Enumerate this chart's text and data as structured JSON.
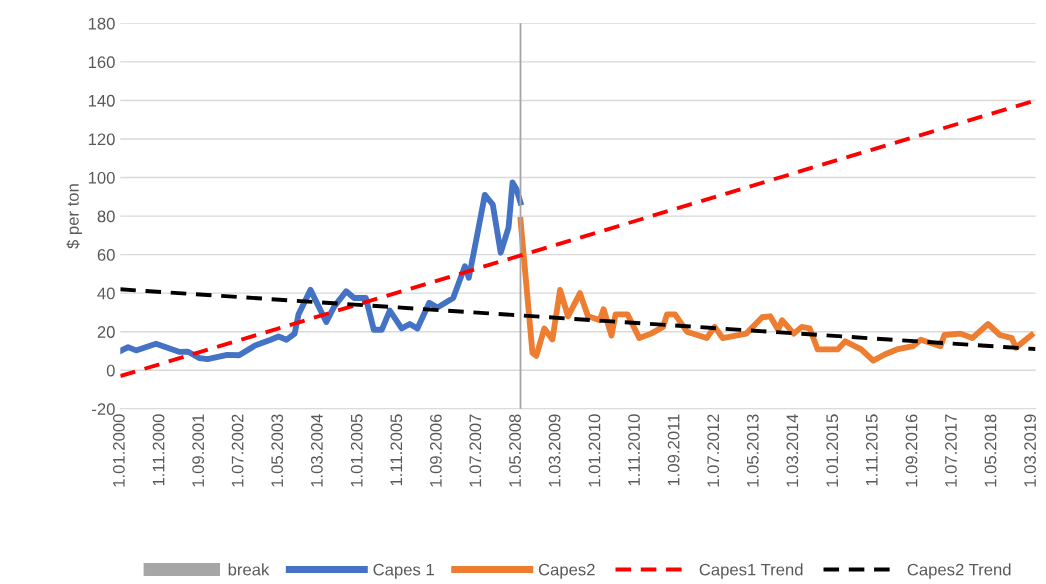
{
  "chart_data": {
    "type": "line",
    "ylabel": "$ per ton",
    "ylim": [
      -20,
      180
    ],
    "yticks": [
      -20,
      0,
      20,
      40,
      60,
      80,
      100,
      120,
      140,
      160,
      180
    ],
    "xlim": [
      "2000-01",
      "2019-04"
    ],
    "xticks": [
      {
        "value": "2000-01",
        "label": "1.01.2000"
      },
      {
        "value": "2000-11",
        "label": "1.11.2000"
      },
      {
        "value": "2001-09",
        "label": "1.09.2001"
      },
      {
        "value": "2002-07",
        "label": "1.07.2002"
      },
      {
        "value": "2003-05",
        "label": "1.05.2003"
      },
      {
        "value": "2004-03",
        "label": "1.03.2004"
      },
      {
        "value": "2005-01",
        "label": "1.01.2005"
      },
      {
        "value": "2005-11",
        "label": "1.11.2005"
      },
      {
        "value": "2006-09",
        "label": "1.09.2006"
      },
      {
        "value": "2007-07",
        "label": "1.07.2007"
      },
      {
        "value": "2008-05",
        "label": "1.05.2008"
      },
      {
        "value": "2009-03",
        "label": "1.03.2009"
      },
      {
        "value": "2010-01",
        "label": "1.01.2010"
      },
      {
        "value": "2010-11",
        "label": "1.11.2010"
      },
      {
        "value": "2011-09",
        "label": "1.09.2011"
      },
      {
        "value": "2012-07",
        "label": "1.07.2012"
      },
      {
        "value": "2013-05",
        "label": "1.05.2013"
      },
      {
        "value": "2014-03",
        "label": "1.03.2014"
      },
      {
        "value": "2015-01",
        "label": "1.01.2015"
      },
      {
        "value": "2015-11",
        "label": "1.11.2015"
      },
      {
        "value": "2016-09",
        "label": "1.09.2016"
      },
      {
        "value": "2017-07",
        "label": "1.07.2017"
      },
      {
        "value": "2018-05",
        "label": "1.05.2018"
      },
      {
        "value": "2019-03",
        "label": "1.03.2019"
      }
    ],
    "grid": "y",
    "legend": "bottom",
    "ref_lines": [
      {
        "axis": "x",
        "value": "2008-06",
        "label": "break",
        "color": "#a6a6a6"
      }
    ],
    "series": [
      {
        "name": "Capes 1",
        "color": "#4472c4",
        "line_style": "solid",
        "x": [
          "2000-01",
          "2000-03",
          "2000-05",
          "2000-10",
          "2001-04",
          "2001-06",
          "2001-09",
          "2001-11",
          "2002-04",
          "2002-07",
          "2002-11",
          "2003-03",
          "2003-05",
          "2003-07",
          "2003-09",
          "2003-10",
          "2004-01",
          "2004-05",
          "2004-07",
          "2004-10",
          "2004-12",
          "2005-03",
          "2005-05",
          "2005-07",
          "2005-09",
          "2005-12",
          "2006-02",
          "2006-04",
          "2006-07",
          "2006-09",
          "2007-01",
          "2007-04",
          "2007-05",
          "2007-07",
          "2007-09",
          "2007-11",
          "2008-01",
          "2008-03",
          "2008-04",
          "2008-05",
          "2008-06"
        ],
        "values": [
          10,
          12,
          10.3,
          13.8,
          9.5,
          9.7,
          6.3,
          5.8,
          8,
          7.8,
          12.8,
          15.8,
          17.5,
          15.8,
          19,
          29,
          41.7,
          25,
          33,
          41,
          37.5,
          37.5,
          21,
          21,
          31,
          21.7,
          24,
          21.7,
          35,
          32.5,
          37.5,
          54,
          48,
          69,
          91,
          86,
          61,
          74,
          97.5,
          94,
          87
        ]
      },
      {
        "name": "Capes2",
        "color": "#ed7d31",
        "line_style": "solid",
        "x": [
          "2008-06",
          "2008-09",
          "2008-10",
          "2008-12",
          "2009-02",
          "2009-04",
          "2009-06",
          "2009-09",
          "2009-11",
          "2010-02",
          "2010-03",
          "2010-05",
          "2010-06",
          "2010-09",
          "2010-12",
          "2011-03",
          "2011-06",
          "2011-07",
          "2011-09",
          "2011-12",
          "2012-05",
          "2012-07",
          "2012-09",
          "2013-03",
          "2013-07",
          "2013-09",
          "2013-11",
          "2013-12",
          "2014-03",
          "2014-05",
          "2014-07",
          "2014-09",
          "2015-02",
          "2015-04",
          "2015-08",
          "2015-11",
          "2016-02",
          "2016-05",
          "2016-09",
          "2016-11",
          "2017-04",
          "2017-05",
          "2017-09",
          "2017-12",
          "2018-04",
          "2018-07",
          "2018-10",
          "2018-11",
          "2019-03"
        ],
        "values": [
          78,
          9,
          7.5,
          21.7,
          16,
          41.7,
          28,
          40,
          28,
          26,
          31.7,
          18,
          29,
          29,
          16.7,
          19,
          22.5,
          29,
          29,
          20,
          16.7,
          22.5,
          16.7,
          19,
          27.5,
          28,
          21,
          26,
          19,
          22.5,
          21.7,
          10.8,
          10.8,
          15,
          10.8,
          5,
          8.3,
          10.8,
          12.5,
          15.8,
          12.5,
          18.3,
          19,
          16.7,
          24,
          18.3,
          16.7,
          11.7,
          18.3
        ]
      },
      {
        "name": "Capes1 Trend",
        "color": "#ff0000",
        "line_style": "dashed",
        "x": [
          "2000-01",
          "2019-04"
        ],
        "values": [
          -3,
          140
        ]
      },
      {
        "name": "Capes2 Trend",
        "color": "#000000",
        "line_style": "dashed",
        "x": [
          "2000-01",
          "2019-04"
        ],
        "values": [
          42,
          11
        ]
      }
    ]
  }
}
